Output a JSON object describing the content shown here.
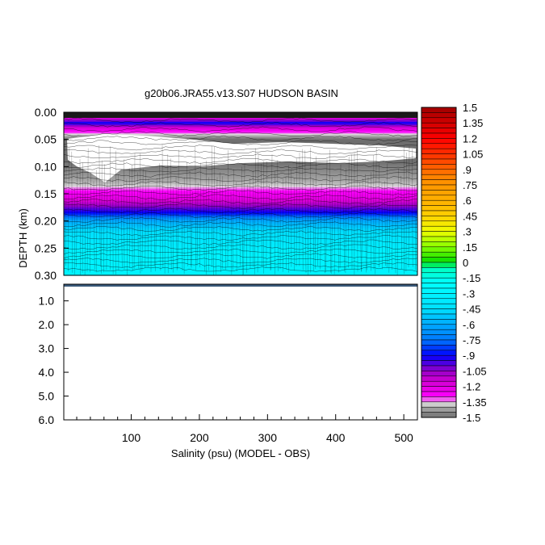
{
  "chart_data": {
    "type": "heatmap",
    "title": "g20b06.JRA55.v13.S07 HUDSON BASIN",
    "xlabel": "Salinity (psu) (MODEL - OBS)",
    "ylabel": "DEPTH (km)",
    "x_range": [
      1,
      520
    ],
    "x_ticks": [
      "100",
      "200",
      "300",
      "400",
      "500"
    ],
    "x_tick_values": [
      100,
      200,
      300,
      400,
      500
    ],
    "upper_panel": {
      "y_range": [
        0.0,
        0.3
      ],
      "y_ticks": [
        "0.00",
        "0.05",
        "0.10",
        "0.15",
        "0.20",
        "0.25",
        "0.30"
      ],
      "y_tick_values": [
        0.0,
        0.05,
        0.1,
        0.15,
        0.2,
        0.25,
        0.3
      ],
      "depth_profile": [
        {
          "depth": 0.0,
          "value": -1.5
        },
        {
          "depth": 0.02,
          "value": -0.9
        },
        {
          "depth": 0.03,
          "value": -1.2
        },
        {
          "depth": 0.05,
          "value": -1.5
        },
        {
          "depth": 0.09,
          "value": -1.5
        },
        {
          "depth": 0.13,
          "value": -1.4
        },
        {
          "depth": 0.16,
          "value": -1.2
        },
        {
          "depth": 0.185,
          "value": -0.9
        },
        {
          "depth": 0.2,
          "value": -0.6
        },
        {
          "depth": 0.22,
          "value": -0.45
        },
        {
          "depth": 0.26,
          "value": -0.3
        },
        {
          "depth": 0.3,
          "value": -0.3
        }
      ]
    },
    "lower_panel": {
      "y_range": [
        0.3,
        6.0
      ],
      "y_ticks": [
        "1.0",
        "2.0",
        "3.0",
        "4.0",
        "5.0",
        "6.0"
      ],
      "y_tick_values": [
        1.0,
        2.0,
        3.0,
        4.0,
        5.0,
        6.0
      ]
    },
    "colorbar": {
      "range": [
        -1.5,
        1.5
      ],
      "step": 0.05,
      "labels": [
        "1.5",
        "1.35",
        "1.2",
        "1.05",
        ".9",
        ".75",
        ".6",
        ".45",
        ".3",
        ".15",
        "0",
        "-.15",
        "-.3",
        "-.45",
        "-.6",
        "-.75",
        "-.9",
        "-1.05",
        "-1.2",
        "-1.35",
        "-1.5"
      ],
      "label_values": [
        1.5,
        1.35,
        1.2,
        1.05,
        0.9,
        0.75,
        0.6,
        0.45,
        0.3,
        0.15,
        0,
        -0.15,
        -0.3,
        -0.45,
        -0.6,
        -0.75,
        -0.9,
        -1.05,
        -1.2,
        -1.35,
        -1.5
      ],
      "color_stops": [
        {
          "value": -1.5,
          "color": "#6e6e6e"
        },
        {
          "value": -1.42,
          "color": "#a0a0a0"
        },
        {
          "value": -1.36,
          "color": "#dcdcdc"
        },
        {
          "value": -1.3,
          "color": "#ff00ff"
        },
        {
          "value": -1.15,
          "color": "#d300d3"
        },
        {
          "value": -1.05,
          "color": "#9600c8"
        },
        {
          "value": -0.9,
          "color": "#0000ff"
        },
        {
          "value": -0.75,
          "color": "#0078ff"
        },
        {
          "value": -0.6,
          "color": "#00aaff"
        },
        {
          "value": -0.45,
          "color": "#00e0ff"
        },
        {
          "value": -0.2,
          "color": "#00ffff"
        },
        {
          "value": -0.05,
          "color": "#00ffc0"
        },
        {
          "value": 0.0,
          "color": "#00dd00"
        },
        {
          "value": 0.15,
          "color": "#88ff00"
        },
        {
          "value": 0.3,
          "color": "#eeff00"
        },
        {
          "value": 0.45,
          "color": "#ffd000"
        },
        {
          "value": 0.6,
          "color": "#ffb000"
        },
        {
          "value": 0.8,
          "color": "#ff8c00"
        },
        {
          "value": 1.0,
          "color": "#ff4000"
        },
        {
          "value": 1.2,
          "color": "#ff0000"
        },
        {
          "value": 1.35,
          "color": "#d00000"
        },
        {
          "value": 1.5,
          "color": "#a00000"
        }
      ]
    },
    "grid": false,
    "legend_placement": "right"
  }
}
